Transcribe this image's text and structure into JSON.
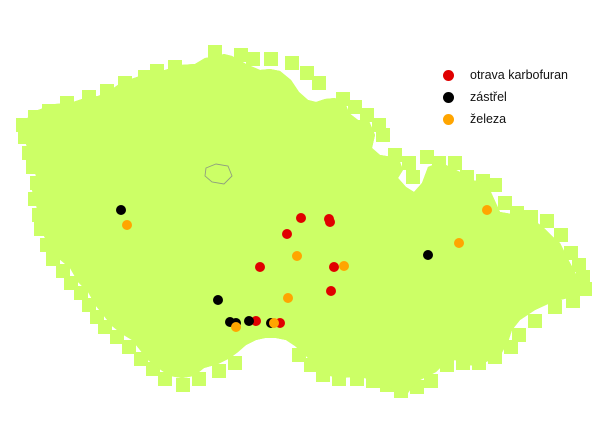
{
  "map": {
    "country": "Czech Republic",
    "base_color": "#ccff66",
    "border_color": "#8a8a8a",
    "region_line_color": "#9aa98a"
  },
  "legend": {
    "items": [
      {
        "key": "carbofuran",
        "label": "otrava karbofuran",
        "color": "#e00000"
      },
      {
        "key": "shooting",
        "label": "zástřel",
        "color": "#000000"
      },
      {
        "key": "trap",
        "label": "železa",
        "color": "#ffa500"
      }
    ]
  },
  "incidents": {
    "carbofuran": 9,
    "shooting": 8,
    "trap": 8
  }
}
